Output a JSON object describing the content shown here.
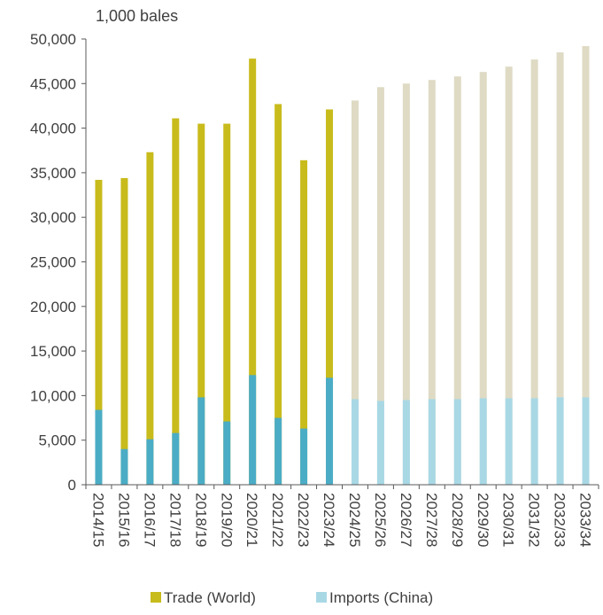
{
  "chart_data": {
    "type": "bar",
    "stacked": false,
    "overlapping": true,
    "unit_label": "1,000 bales",
    "categories": [
      "2014/15",
      "2015/16",
      "2016/17",
      "2017/18",
      "2018/19",
      "2019/20",
      "2020/21",
      "2021/22",
      "2022/23",
      "2023/24",
      "2024/25",
      "2025/26",
      "2026/27",
      "2027/28",
      "2028/29",
      "2029/30",
      "2030/31",
      "2031/32",
      "2032/33",
      "2033/34"
    ],
    "projection_start_index": 10,
    "series": [
      {
        "name": "Trade (World)",
        "color": "#c8bb1c",
        "projection_color": "#dedac4",
        "values": [
          34200,
          34400,
          37300,
          41100,
          40500,
          40500,
          47800,
          42700,
          36400,
          42100,
          43100,
          44600,
          45000,
          45400,
          45800,
          46300,
          46900,
          47700,
          48500,
          49200
        ]
      },
      {
        "name": "Imports (China)",
        "color": "#4bacc6",
        "projection_color": "#a9d8e5",
        "values": [
          8400,
          4000,
          5100,
          5800,
          9800,
          7100,
          12300,
          7500,
          6300,
          12000,
          9600,
          9400,
          9500,
          9600,
          9600,
          9700,
          9700,
          9700,
          9800,
          9800
        ]
      }
    ],
    "y_ticks": [
      "0",
      "5,000",
      "10,000",
      "15,000",
      "20,000",
      "25,000",
      "30,000",
      "35,000",
      "40,000",
      "45,000",
      "50,000"
    ],
    "ylim": [
      0,
      50000
    ],
    "grid": false,
    "legend_position": "bottom-center"
  }
}
